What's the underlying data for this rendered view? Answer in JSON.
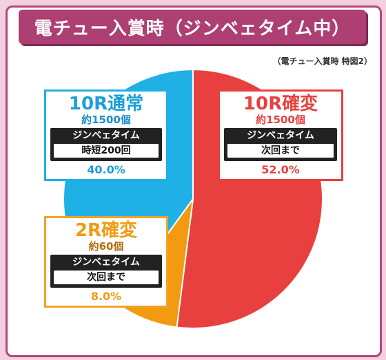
{
  "header": {
    "title": "電チュー入賞時（ジンベェタイム中）",
    "subtitle": "（電チュー入賞時 特図2）"
  },
  "colors": {
    "blue": "#1fb0e6",
    "red": "#e8403e",
    "orange": "#f29a10",
    "frame": "#b3467a"
  },
  "chart_data": {
    "type": "pie",
    "title": "電チュー入賞時（ジンベェタイム中）",
    "subtitle": "（電チュー入賞時 特図2）",
    "slices": [
      {
        "label": "10R確変",
        "payout": "約1500個",
        "mode": "ジンベェタイム",
        "detail": "次回まで",
        "value": 52.0,
        "percent_label": "52.0%",
        "color": "#e8403e"
      },
      {
        "label": "2R確変",
        "payout": "約60個",
        "mode": "ジンベェタイム",
        "detail": "次回まで",
        "value": 8.0,
        "percent_label": "8.0%",
        "color": "#f29a10"
      },
      {
        "label": "10R通常",
        "payout": "約1500個",
        "mode": "ジンベェタイム",
        "detail": "時短200回",
        "value": 40.0,
        "percent_label": "40.0%",
        "color": "#1fb0e6"
      }
    ]
  }
}
